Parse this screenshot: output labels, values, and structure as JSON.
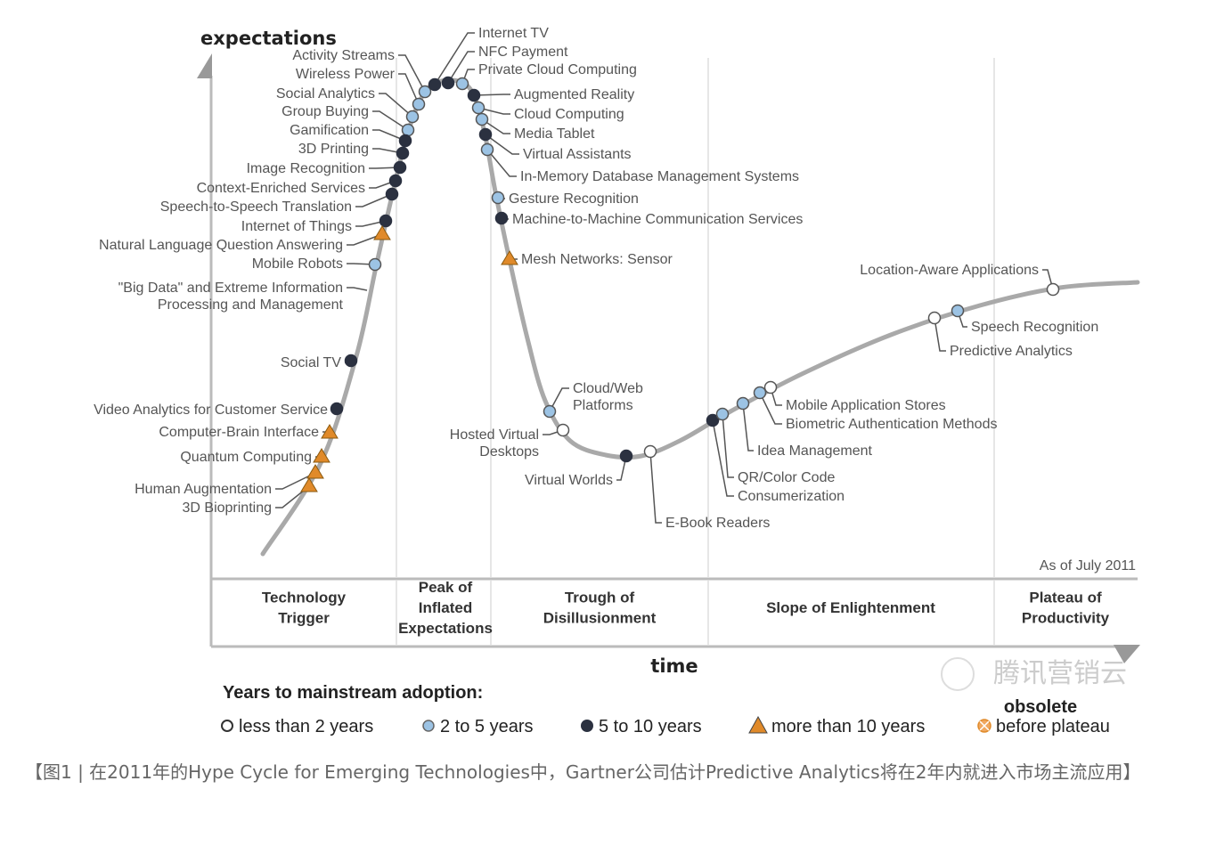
{
  "axes": {
    "y_label": "expectations",
    "x_label": "time",
    "as_of": "As of July 2011"
  },
  "phases": [
    "Technology|Trigger",
    "Peak of|Inflated|Expectations",
    "Trough of|Disillusionment",
    "Slope of Enlightenment",
    "Plateau of|Productivity"
  ],
  "legend": {
    "title": "Years to mainstream adoption:",
    "items": [
      {
        "label": "less than 2 years",
        "marker": "white-circle"
      },
      {
        "label": "2 to 5 years",
        "marker": "light-blue-circle"
      },
      {
        "label": "5 to 10 years",
        "marker": "dark-circle"
      },
      {
        "label": "more than 10 years",
        "marker": "orange-triangle"
      },
      {
        "label": "before plateau",
        "marker": "orange-crossed-circle"
      }
    ],
    "obsolete": "obsolete"
  },
  "colors": {
    "white": "#ffffff",
    "light": "#9cc3e4",
    "dark": "#2b3140",
    "triangle": "#e08a2a",
    "curve": "#a9a9a9"
  },
  "technologies": [
    {
      "label": "Activity Streams",
      "years": "2-5"
    },
    {
      "label": "Wireless Power",
      "years": "2-5"
    },
    {
      "label": "Social Analytics",
      "years": "2-5"
    },
    {
      "label": "Group Buying",
      "years": "2-5"
    },
    {
      "label": "Gamification",
      "years": "5-10"
    },
    {
      "label": "3D Printing",
      "years": "5-10"
    },
    {
      "label": "Image Recognition",
      "years": "5-10"
    },
    {
      "label": "Context-Enriched Services",
      "years": "5-10"
    },
    {
      "label": "Speech-to-Speech Translation",
      "years": "5-10"
    },
    {
      "label": "Internet of Things",
      "years": "5-10"
    },
    {
      "label": "Natural Language Question Answering",
      "years": ">10"
    },
    {
      "label": "Mobile Robots",
      "years": "2-5"
    },
    {
      "label": "\"Big Data\" and Extreme Information",
      "label2": "Processing and Management",
      "years": ""
    },
    {
      "label": "Social TV",
      "years": "5-10"
    },
    {
      "label": "Video Analytics for Customer Service",
      "years": "5-10"
    },
    {
      "label": "Computer-Brain Interface",
      "years": ">10"
    },
    {
      "label": "Quantum Computing",
      "years": ">10"
    },
    {
      "label": "Human Augmentation",
      "years": ">10"
    },
    {
      "label": "3D Bioprinting",
      "years": ">10"
    },
    {
      "label": "Internet TV",
      "years": "5-10"
    },
    {
      "label": "NFC Payment",
      "years": "5-10"
    },
    {
      "label": "Private Cloud Computing",
      "years": "2-5"
    },
    {
      "label": "Augmented Reality",
      "years": "5-10"
    },
    {
      "label": "Cloud Computing",
      "years": "2-5"
    },
    {
      "label": "Media Tablet",
      "years": "2-5"
    },
    {
      "label": "Virtual Assistants",
      "years": "5-10"
    },
    {
      "label": "In-Memory Database Management Systems",
      "years": "2-5"
    },
    {
      "label": "Gesture Recognition",
      "years": "2-5"
    },
    {
      "label": "Machine-to-Machine Communication Services",
      "years": "5-10"
    },
    {
      "label": "Mesh Networks: Sensor",
      "years": ">10"
    },
    {
      "label": "Cloud/Web",
      "label2": "Platforms",
      "years": "2-5"
    },
    {
      "label": "Hosted Virtual",
      "label2": "Desktops",
      "years": "<2"
    },
    {
      "label": "Virtual Worlds",
      "years": "5-10"
    },
    {
      "label": "E-Book Readers",
      "years": "<2"
    },
    {
      "label": "Consumerization",
      "years": "5-10"
    },
    {
      "label": "QR/Color Code",
      "years": "2-5"
    },
    {
      "label": "Idea Management",
      "years": "2-5"
    },
    {
      "label": "Biometric Authentication Methods",
      "years": "2-5"
    },
    {
      "label": "Mobile Application Stores",
      "years": "<2"
    },
    {
      "label": "Predictive Analytics",
      "years": "<2"
    },
    {
      "label": "Speech Recognition",
      "years": "2-5"
    },
    {
      "label": "Location-Aware Applications",
      "years": "<2"
    }
  ],
  "watermark": "腾讯营销云",
  "caption": "【图1 | 在2011年的Hype Cycle for Emerging Technologies中，Gartner公司估计Predictive Analytics将在2年内就进入市场主流应用】"
}
